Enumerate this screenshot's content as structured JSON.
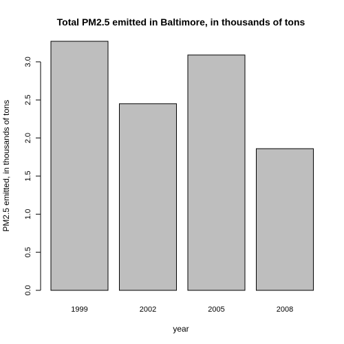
{
  "chart_data": {
    "type": "bar",
    "title": "Total PM2.5 emitted in Baltimore, in thousands of tons",
    "xlabel": "year",
    "ylabel": "PM2.5 emitted, in thousands of tons",
    "categories": [
      "1999",
      "2002",
      "2005",
      "2008"
    ],
    "values": [
      3.27,
      2.45,
      3.09,
      1.86
    ],
    "ylim": [
      0,
      3.3
    ],
    "yticks": [
      0.0,
      0.5,
      1.0,
      1.5,
      2.0,
      2.5,
      3.0
    ],
    "ytick_labels": [
      "0.0",
      "0.5",
      "1.0",
      "1.5",
      "2.0",
      "2.5",
      "3.0"
    ],
    "grid": false,
    "colors": {
      "bar_fill": "#bebebe",
      "bar_stroke": "#000000"
    }
  }
}
